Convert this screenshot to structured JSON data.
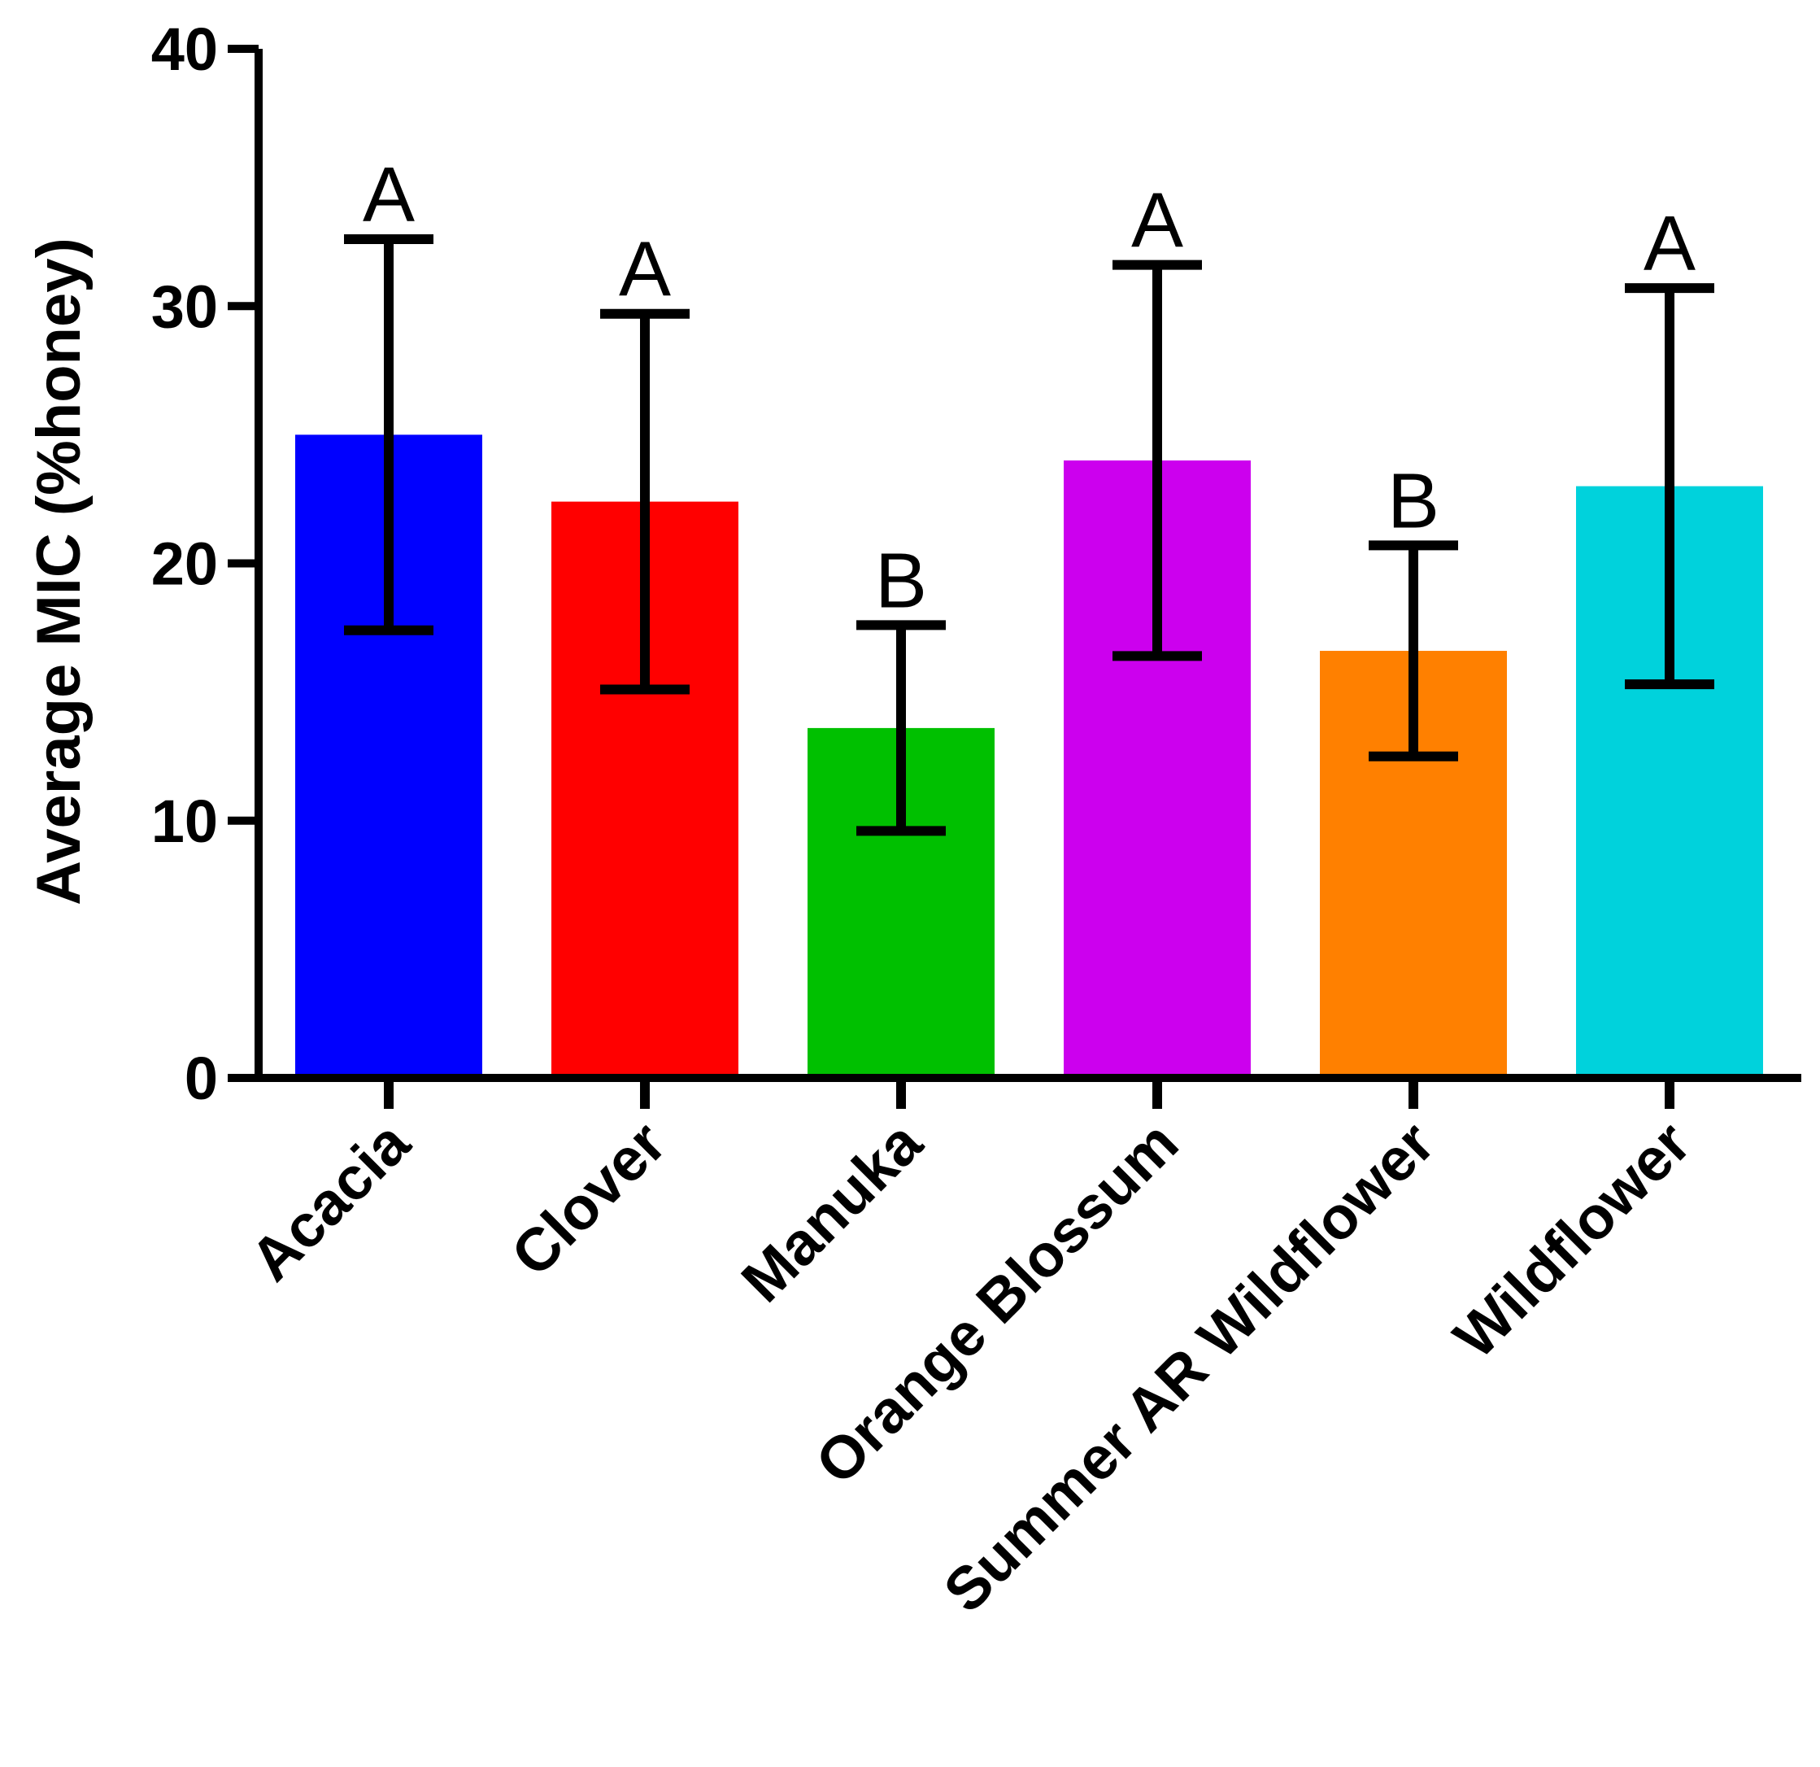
{
  "chart_data": {
    "type": "bar",
    "title": "",
    "xlabel": "",
    "ylabel": "Average MIC (%honey)",
    "ylim": [
      0,
      40
    ],
    "yticks": [
      "0",
      "10",
      "20",
      "30",
      "40"
    ],
    "categories": [
      "Acacia",
      "Clover",
      "Manuka",
      "Orange Blossum",
      "Summer AR Wildflower",
      "Wildflower"
    ],
    "values": [
      25.0,
      22.4,
      13.6,
      24.0,
      16.6,
      23.0
    ],
    "error": [
      7.6,
      7.3,
      4.0,
      7.6,
      4.1,
      7.7
    ],
    "significance_letters": [
      "A",
      "A",
      "B",
      "A",
      "B",
      "A"
    ],
    "colors": [
      "#0000ff",
      "#ff0000",
      "#00c000",
      "#cc00ee",
      "#ff8000",
      "#00d2dc"
    ],
    "grid": false,
    "legend": "none"
  }
}
